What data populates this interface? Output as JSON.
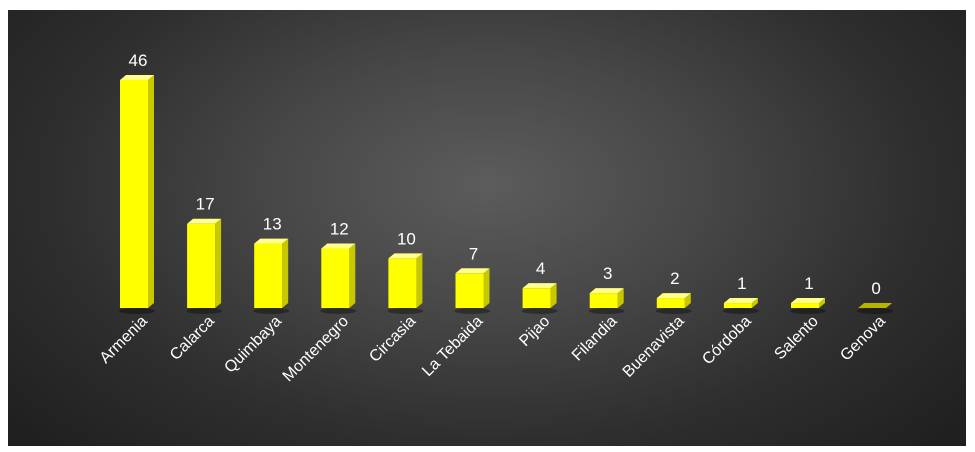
{
  "chart_data": {
    "type": "bar",
    "categories": [
      "Armenia",
      "Calarca",
      "Quimbaya",
      "Montenegro",
      "Circasia",
      "La Tebaida",
      "Pijao",
      "Filandia",
      "Buenavista",
      "Córdoba",
      "Salento",
      "Genova"
    ],
    "values": [
      46,
      17,
      13,
      12,
      10,
      7,
      4,
      3,
      2,
      1,
      1,
      0
    ],
    "title": "",
    "xlabel": "",
    "ylabel": "",
    "ylim": [
      0,
      46
    ],
    "grid": false,
    "legend": "none",
    "bar_color": "#ffff00",
    "bar_side_color": "#c8c800",
    "bar_top_color": "#ffff8a",
    "background_color": "#3c3c3c",
    "label_color": "#ffffff",
    "style": "3d-column"
  }
}
